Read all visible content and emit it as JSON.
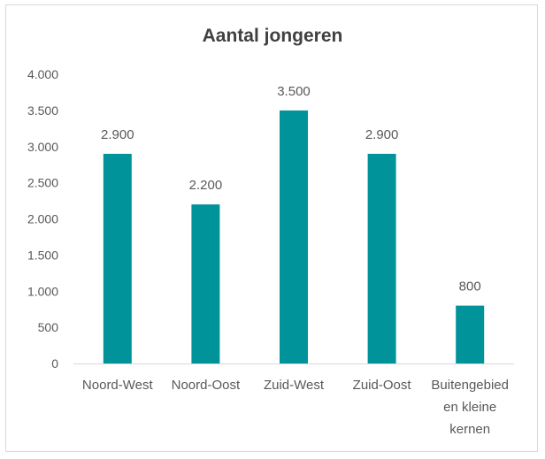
{
  "chart_data": {
    "type": "bar",
    "title": "Aantal jongeren",
    "categories": [
      [
        "Noord-West"
      ],
      [
        "Noord-Oost"
      ],
      [
        "Zuid-West"
      ],
      [
        "Zuid-Oost"
      ],
      [
        "Buitengebied",
        "en kleine",
        "kernen"
      ]
    ],
    "values": [
      2900,
      2200,
      3500,
      2900,
      800
    ],
    "value_labels": [
      "2.900",
      "2.200",
      "3.500",
      "2.900",
      "800"
    ],
    "yticks": [
      0,
      500,
      1000,
      1500,
      2000,
      2500,
      3000,
      3500,
      4000
    ],
    "ytick_labels": [
      "0",
      "500",
      "1.000",
      "1.500",
      "2.000",
      "2.500",
      "3.000",
      "3.500",
      "4.000"
    ],
    "ylim": [
      0,
      4000
    ],
    "grid": false,
    "legend": "none",
    "bar_color": "#00939a",
    "axis_color": "#d9d9d9"
  }
}
